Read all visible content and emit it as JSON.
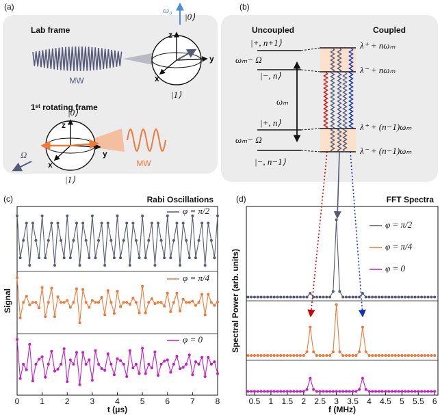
{
  "panel_a": {
    "label": "(a)",
    "lab_frame": "Lab frame",
    "rotating_frame": "1ˢᵗ rotating frame",
    "mw_lab": "MW",
    "mw_rot": "MW",
    "omega0": "ω₀",
    "rabi": "Ω",
    "lab_sphere": {
      "z": "z",
      "x": "x",
      "y": "y",
      "ket0": "|0⟩",
      "ket1": "|1⟩"
    },
    "rot_sphere": {
      "z": "z",
      "x": "x",
      "y": "y",
      "ket0": "|0⟩",
      "ket1": "|1⟩"
    }
  },
  "panel_b": {
    "label": "(b)",
    "uncoupled": "Uncoupled",
    "coupled": "Coupled",
    "left_levels": [
      "|+, n+1⟩",
      "|−, n⟩",
      "|+, n⟩",
      "|−, n−1⟩"
    ],
    "gaps": [
      "ωₘ− Ω",
      "ωₘ− Ω"
    ],
    "spacing": "ωₘ",
    "right_levels": [
      "λ⁺ + nωₘ",
      "λ⁻ + nωₘ",
      "λ⁺ + (n−1)ωₘ",
      "λ⁻ + (n−1)ωₘ"
    ]
  },
  "chart_data": [
    {
      "type": "line",
      "label": "(c)",
      "title": "Rabi Oscillations",
      "x_label": "t (μs)",
      "y_label": "Signal",
      "x": [
        0,
        0.125,
        0.25,
        0.375,
        0.5,
        0.625,
        0.75,
        0.875,
        1,
        1.125,
        1.25,
        1.375,
        1.5,
        1.625,
        1.75,
        1.875,
        2,
        2.125,
        2.25,
        2.375,
        2.5,
        2.625,
        2.75,
        2.875,
        3,
        3.125,
        3.25,
        3.375,
        3.5,
        3.625,
        3.75,
        3.875,
        4,
        4.125,
        4.25,
        4.375,
        4.5,
        4.625,
        4.75,
        4.875,
        5,
        5.125,
        5.25,
        5.375,
        5.5,
        5.625,
        5.75,
        5.875,
        6,
        6.125,
        6.25,
        6.375,
        6.5,
        6.625,
        6.75,
        6.875,
        7,
        7.125,
        7.25,
        7.375,
        7.5,
        7.625,
        7.75,
        7.875,
        8
      ],
      "xlim": [
        0,
        8
      ],
      "xticks": [
        0,
        1,
        2,
        3,
        4,
        5,
        6,
        7,
        8
      ],
      "ylim": [
        -0.5,
        2.55
      ],
      "series": [
        {
          "name": "φ = π/2",
          "color": "#555a78",
          "values": [
            2.4,
            1.72,
            2,
            2.28,
            1.6,
            2.28,
            2,
            1.72,
            2.4,
            1.72,
            2,
            2.28,
            1.6,
            2.28,
            2,
            1.72,
            2.4,
            1.72,
            2,
            2.28,
            1.6,
            2.28,
            2,
            1.72,
            2.4,
            1.72,
            2,
            2.28,
            1.6,
            2.28,
            2,
            1.72,
            2.4,
            1.72,
            2,
            2.28,
            1.6,
            2.28,
            2,
            1.72,
            2.4,
            1.72,
            2,
            2.28,
            1.6,
            2.28,
            2,
            1.72,
            2.4,
            1.72,
            2,
            2.28,
            1.6,
            2.28,
            2,
            1.72,
            2.4,
            1.72,
            2,
            2.28,
            1.6,
            2.28,
            2,
            1.72,
            2.4
          ]
        },
        {
          "name": "φ = π/4",
          "color": "#f07838",
          "values": [
            1.4,
            0.75,
            1,
            1.1,
            0.96,
            1,
            1,
            0.91,
            1.24,
            0.77,
            1,
            1.23,
            0.77,
            1.09,
            1,
            1,
            1.03,
            0.92,
            1,
            1.22,
            0.67,
            1.21,
            1,
            0.92,
            1.03,
            1,
            1,
            1.08,
            0.8,
            1.19,
            1,
            0.82,
            1.18,
            0.93,
            1,
            1,
            0.97,
            1.07,
            1,
            0.83,
            1.26,
            0.83,
            1,
            1.06,
            0.98,
            1,
            1,
            0.94,
            1.15,
            0.85,
            1,
            1.15,
            0.86,
            1.05,
            1,
            1,
            1.02,
            0.95,
            1,
            1.13,
            0.8,
            1.13,
            1,
            0.95,
            1.01
          ]
        },
        {
          "name": "φ = 0",
          "color": "#c41ec4",
          "values": [
            0.4,
            -0.23,
            0,
            -0.09,
            0.32,
            -0.27,
            0,
            0.08,
            0.12,
            -0.21,
            0,
            0.21,
            -0.11,
            -0.08,
            0,
            0.25,
            -0.28,
            0.07,
            0,
            0.19,
            -0.33,
            0.19,
            0,
            0.07,
            -0.26,
            0.22,
            0,
            -0.07,
            -0.1,
            0.17,
            0,
            -0.17,
            0.09,
            0.06,
            0,
            -0.2,
            0.22,
            -0.06,
            0,
            -0.15,
            0.26,
            -0.15,
            0,
            -0.06,
            0.2,
            -0.18,
            0,
            0.05,
            0.07,
            -0.13,
            0,
            0.13,
            -0.07,
            -0.05,
            0,
            0.15,
            -0.17,
            0.04,
            0,
            0.11,
            -0.2,
            0.11,
            0,
            0.04,
            -0.15
          ]
        }
      ]
    },
    {
      "type": "line",
      "label": "(d)",
      "title": "FFT Spectra",
      "x_label": "f (MHz)",
      "y_label": "Spectral Power (arb. units)",
      "x": [
        0.3,
        0.4,
        0.5,
        0.6,
        0.7,
        0.8,
        0.9,
        1,
        1.1,
        1.2,
        1.3,
        1.4,
        1.5,
        1.6,
        1.7,
        1.8,
        1.9,
        2,
        2.1,
        2.2,
        2.3,
        2.4,
        2.5,
        2.6,
        2.7,
        2.8,
        2.9,
        3,
        3.1,
        3.2,
        3.3,
        3.4,
        3.5,
        3.6,
        3.7,
        3.8,
        3.9,
        4,
        4.1,
        4.2,
        4.3,
        4.4,
        4.5,
        4.6,
        4.7,
        4.8,
        4.9,
        5,
        5.1,
        5.2,
        5.3,
        5.4,
        5.5,
        5.6,
        5.7,
        5.8,
        5.9,
        6
      ],
      "xlim": [
        0.25,
        6.1
      ],
      "xticks": [
        0.5,
        1,
        1.5,
        2,
        2.5,
        3,
        3.5,
        4,
        4.5,
        5,
        5.5,
        6
      ],
      "ylim": [
        0,
        10
      ],
      "series": [
        {
          "name": "φ = π/2",
          "color": "#555a78",
          "values": [
            5.2,
            5.2,
            5.2,
            5.2,
            5.2,
            5.2,
            5.2,
            5.2,
            5.2,
            5.2,
            5.2,
            5.2,
            5.2,
            5.2,
            5.2,
            5.2,
            5.2,
            5.2,
            5.2,
            5.4,
            5.2,
            5.2,
            5.2,
            5.2,
            5.2,
            5.2,
            5.5,
            9.3,
            5.5,
            5.2,
            5.2,
            5.2,
            5.2,
            5.2,
            5.2,
            5.4,
            5.2,
            5.2,
            5.2,
            5.2,
            5.2,
            5.2,
            5.2,
            5.2,
            5.2,
            5.2,
            5.2,
            5.2,
            5.2,
            5.2,
            5.2,
            5.2,
            5.2,
            5.2,
            5.2,
            5.2,
            5.2,
            5.2
          ]
        },
        {
          "name": "φ = π/4",
          "color": "#f07838",
          "values": [
            2.1,
            2.1,
            2.1,
            2.1,
            2.1,
            2.1,
            2.1,
            2.1,
            2.1,
            2.1,
            2.1,
            2.1,
            2.1,
            2.1,
            2.1,
            2.1,
            2.1,
            2.1,
            2.3,
            3.6,
            2.3,
            2.1,
            2.1,
            2.1,
            2.1,
            2.1,
            2.3,
            4.8,
            2.3,
            2.1,
            2.1,
            2.1,
            2.1,
            2.1,
            2.3,
            3.6,
            2.3,
            2.1,
            2.1,
            2.1,
            2.1,
            2.1,
            2.1,
            2.1,
            2.1,
            2.1,
            2.1,
            2.1,
            2.1,
            2.1,
            2.1,
            2.1,
            2.1,
            2.1,
            2.1,
            2.1,
            2.1,
            2.1
          ]
        },
        {
          "name": "φ = 0",
          "color": "#c41ec4",
          "values": [
            0.2,
            0.2,
            0.2,
            0.2,
            0.2,
            0.2,
            0.2,
            0.2,
            0.2,
            0.2,
            0.2,
            0.2,
            0.2,
            0.2,
            0.2,
            0.2,
            0.2,
            0.2,
            0.3,
            0.9,
            0.3,
            0.2,
            0.2,
            0.2,
            0.2,
            0.2,
            0.2,
            0.2,
            0.2,
            0.2,
            0.2,
            0.2,
            0.2,
            0.2,
            0.3,
            0.9,
            0.3,
            0.2,
            0.2,
            0.2,
            0.2,
            0.2,
            0.2,
            0.2,
            0.2,
            0.2,
            0.2,
            0.2,
            0.2,
            0.2,
            0.2,
            0.2,
            0.2,
            0.2,
            0.2,
            0.2,
            0.2,
            0.2
          ]
        }
      ]
    }
  ]
}
